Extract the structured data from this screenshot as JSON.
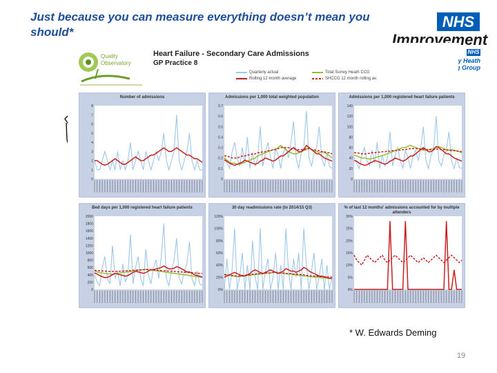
{
  "slide": {
    "title": "Just because you can measure everything doesn’t mean you should*",
    "footnote": "* W. Edwards Deming",
    "page_number": "19"
  },
  "branding": {
    "nhs_mark": "NHS",
    "org_name": "Improvement",
    "ccg_mark": "NHS",
    "ccg_line1": "Surrey Heath",
    "ccg_line2": "Clinical Commissioning Group"
  },
  "report": {
    "title": "Heart Failure - Secondary Care Admissions",
    "subtitle": "GP Practice 8",
    "qo_logo_text_1": "Quality",
    "qo_logo_text_2": "Observatory",
    "legend": [
      {
        "label": "Quarterly actual",
        "color": "#9ec6e8"
      },
      {
        "label": "Total Surrey Heath CCG",
        "color": "#9abb2e"
      },
      {
        "label": "Rolling 12 month average",
        "color": "#c81e1e"
      },
      {
        "label": "SHCCG 12 month rolling av.",
        "color": "#c81e1e"
      }
    ]
  },
  "colors": {
    "quarterly": "#9ec6e8",
    "ccg": "#9abb2e",
    "rolling": "#c81e1e",
    "panel_bg": "#c7d1e5",
    "plot_bg": "#ffffff",
    "brand_blue": "#005eb8",
    "title_blue": "#1f4e9c"
  },
  "chart_data": [
    {
      "type": "line",
      "title": "Number of admissions",
      "ylim": [
        0,
        8
      ],
      "yticks": [
        "0",
        "1",
        "2",
        "3",
        "4",
        "5",
        "6",
        "7",
        "8"
      ],
      "series": [
        {
          "name": "Quarterly actual",
          "values": [
            2,
            1,
            1,
            2,
            3,
            2,
            1,
            2,
            1,
            3,
            1,
            2,
            1,
            2,
            4,
            1,
            2,
            3,
            2,
            1,
            3,
            2,
            1,
            2,
            3,
            2,
            3,
            5,
            2,
            1,
            2,
            3,
            7,
            2,
            1,
            2,
            3,
            5,
            2,
            1,
            2,
            1,
            1
          ]
        },
        {
          "name": "Rolling 12 month average",
          "values": [
            2,
            2,
            1.8,
            1.6,
            1.5,
            1.6,
            1.8,
            2,
            2.2,
            2,
            1.8,
            1.6,
            1.6,
            1.8,
            2,
            2.2,
            2.4,
            2.2,
            2,
            2,
            2.2,
            2.4,
            2.6,
            2.6,
            2.8,
            3,
            3.2,
            3.4,
            3.2,
            3,
            3,
            3.2,
            3.4,
            3.2,
            3,
            2.8,
            2.6,
            2.6,
            2.4,
            2.2,
            2.2,
            2,
            1.8
          ]
        }
      ]
    },
    {
      "type": "line",
      "title": "Admissions per 1,000 total weighted population",
      "ylim": [
        0,
        0.7
      ],
      "yticks": [
        "0",
        "0.1",
        "0.2",
        "0.3",
        "0.4",
        "0.5",
        "0.6",
        "0.7"
      ],
      "series": [
        {
          "name": "Quarterly actual",
          "values": [
            0.2,
            0.15,
            0.1,
            0.25,
            0.35,
            0.2,
            0.12,
            0.3,
            0.15,
            0.4,
            0.1,
            0.25,
            0.12,
            0.2,
            0.5,
            0.12,
            0.25,
            0.35,
            0.2,
            0.1,
            0.3,
            0.22,
            0.1,
            0.25,
            0.3,
            0.2,
            0.35,
            0.55,
            0.2,
            0.1,
            0.25,
            0.3,
            0.65,
            0.2,
            0.12,
            0.25,
            0.3,
            0.5,
            0.2,
            0.12,
            0.25,
            0.12,
            0.1
          ]
        },
        {
          "name": "Total Surrey Heath CCG",
          "values": [
            0.2,
            0.18,
            0.16,
            0.15,
            0.15,
            0.14,
            0.14,
            0.15,
            0.16,
            0.17,
            0.18,
            0.19,
            0.2,
            0.22,
            0.23,
            0.24,
            0.25,
            0.26,
            0.27,
            0.28,
            0.28,
            0.3,
            0.32,
            0.3,
            0.28,
            0.26,
            0.25,
            0.24,
            0.24,
            0.25,
            0.26,
            0.27,
            0.28,
            0.3,
            0.28,
            0.27,
            0.26,
            0.25,
            0.26,
            0.25,
            0.24,
            0.22,
            0.2
          ]
        },
        {
          "name": "Rolling 12 month average",
          "values": [
            0.18,
            0.17,
            0.15,
            0.14,
            0.13,
            0.14,
            0.15,
            0.16,
            0.18,
            0.17,
            0.16,
            0.15,
            0.14,
            0.15,
            0.17,
            0.18,
            0.2,
            0.19,
            0.18,
            0.17,
            0.18,
            0.2,
            0.22,
            0.22,
            0.24,
            0.26,
            0.28,
            0.3,
            0.28,
            0.26,
            0.26,
            0.28,
            0.32,
            0.3,
            0.28,
            0.26,
            0.24,
            0.24,
            0.22,
            0.2,
            0.19,
            0.18,
            0.17
          ]
        },
        {
          "name": "SHCCG 12 month rolling av.",
          "values": [
            0.22,
            0.22,
            0.21,
            0.2,
            0.2,
            0.2,
            0.21,
            0.22,
            0.22,
            0.23,
            0.23,
            0.24,
            0.24,
            0.25,
            0.25,
            0.26,
            0.26,
            0.27,
            0.27,
            0.28,
            0.28,
            0.29,
            0.3,
            0.3,
            0.3,
            0.3,
            0.29,
            0.29,
            0.28,
            0.28,
            0.28,
            0.28,
            0.29,
            0.29,
            0.28,
            0.28,
            0.27,
            0.27,
            0.26,
            0.26,
            0.25,
            0.25,
            0.24
          ]
        }
      ]
    },
    {
      "type": "line",
      "title": "Admissions per 1,000 registered heart failure patients",
      "ylim": [
        0,
        140
      ],
      "yticks": [
        "0",
        "20",
        "40",
        "60",
        "80",
        "100",
        "120",
        "140"
      ],
      "series": [
        {
          "name": "Quarterly actual",
          "values": [
            40,
            30,
            20,
            45,
            60,
            35,
            25,
            55,
            30,
            70,
            20,
            45,
            25,
            40,
            90,
            25,
            45,
            60,
            35,
            20,
            55,
            40,
            20,
            45,
            55,
            35,
            60,
            100,
            35,
            20,
            45,
            55,
            120,
            35,
            25,
            45,
            55,
            90,
            35,
            20,
            40,
            22,
            20
          ]
        },
        {
          "name": "Total Surrey Heath CCG",
          "values": [
            45,
            44,
            42,
            40,
            40,
            39,
            38,
            39,
            40,
            42,
            43,
            45,
            46,
            48,
            50,
            52,
            54,
            56,
            58,
            60,
            60,
            62,
            64,
            62,
            60,
            58,
            56,
            55,
            55,
            56,
            57,
            58,
            60,
            62,
            60,
            58,
            56,
            55,
            56,
            55,
            54,
            52,
            50
          ]
        },
        {
          "name": "Rolling 12 month average",
          "values": [
            35,
            34,
            30,
            28,
            26,
            27,
            30,
            32,
            35,
            34,
            32,
            30,
            28,
            30,
            34,
            36,
            40,
            38,
            36,
            34,
            36,
            40,
            44,
            44,
            48,
            52,
            56,
            60,
            56,
            52,
            52,
            56,
            62,
            60,
            56,
            52,
            48,
            48,
            44,
            40,
            38,
            36,
            34
          ]
        },
        {
          "name": "SHCCG 12 month rolling av.",
          "values": [
            50,
            50,
            49,
            48,
            48,
            48,
            49,
            50,
            50,
            51,
            51,
            52,
            52,
            53,
            53,
            54,
            54,
            55,
            55,
            56,
            56,
            57,
            58,
            58,
            58,
            58,
            57,
            57,
            56,
            56,
            56,
            56,
            57,
            57,
            56,
            56,
            55,
            55,
            54,
            54,
            53,
            53,
            52
          ]
        }
      ]
    },
    {
      "type": "line",
      "title": "Bed days per 1,000 registered heart failure patients",
      "ylim": [
        0,
        2000
      ],
      "yticks": [
        "0",
        "200",
        "400",
        "600",
        "800",
        "1000",
        "1200",
        "1400",
        "1600",
        "1800",
        "2000"
      ],
      "series": [
        {
          "name": "Quarterly actual",
          "values": [
            400,
            200,
            100,
            600,
            900,
            300,
            150,
            1200,
            300,
            500,
            100,
            700,
            200,
            400,
            1500,
            150,
            600,
            900,
            300,
            100,
            1100,
            400,
            150,
            600,
            800,
            300,
            900,
            1800,
            300,
            100,
            500,
            800,
            1400,
            300,
            150,
            500,
            700,
            1300,
            300,
            100,
            500,
            150,
            100
          ]
        },
        {
          "name": "Total Surrey Heath CCG",
          "values": [
            500,
            480,
            460,
            450,
            440,
            430,
            420,
            420,
            430,
            440,
            450,
            460,
            470,
            480,
            490,
            500,
            510,
            520,
            530,
            540,
            550,
            540,
            530,
            520,
            510,
            500,
            490,
            480,
            470,
            460,
            450,
            440,
            430,
            420,
            410,
            400,
            390,
            380,
            370,
            360,
            350,
            340,
            330
          ]
        },
        {
          "name": "Rolling 12 month average",
          "values": [
            450,
            420,
            380,
            350,
            320,
            330,
            360,
            400,
            440,
            420,
            400,
            380,
            360,
            380,
            420,
            460,
            500,
            480,
            460,
            440,
            460,
            500,
            540,
            540,
            560,
            580,
            600,
            640,
            600,
            560,
            560,
            580,
            620,
            600,
            560,
            520,
            480,
            480,
            440,
            400,
            380,
            360,
            340
          ]
        },
        {
          "name": "SHCCG 12 month rolling av.",
          "values": [
            520,
            515,
            510,
            505,
            500,
            495,
            490,
            490,
            492,
            495,
            498,
            500,
            505,
            510,
            515,
            520,
            525,
            530,
            535,
            540,
            545,
            540,
            535,
            530,
            525,
            520,
            515,
            510,
            505,
            500,
            495,
            490,
            485,
            480,
            475,
            470,
            465,
            460,
            455,
            450,
            445,
            440,
            435
          ]
        }
      ]
    },
    {
      "type": "line",
      "title": "30 day readmissions rate (to 2014/15 Q3)",
      "ylim": [
        0,
        120
      ],
      "yticks": [
        "0%",
        "20%",
        "40%",
        "60%",
        "80%",
        "100%",
        "120%"
      ],
      "series": [
        {
          "name": "Quarterly actual",
          "values": [
            0,
            50,
            0,
            30,
            100,
            0,
            20,
            60,
            0,
            40,
            0,
            80,
            20,
            0,
            100,
            0,
            30,
            50,
            0,
            20,
            60,
            0,
            40,
            0,
            100,
            30,
            0,
            50,
            20,
            60,
            0,
            100,
            40,
            0,
            30,
            60,
            0,
            20,
            50,
            0,
            40,
            0,
            20
          ]
        },
        {
          "name": "Total Surrey Heath CCG",
          "values": [
            25,
            24,
            23,
            22,
            22,
            21,
            21,
            22,
            22,
            23,
            23,
            24,
            24,
            25,
            25,
            26,
            26,
            27,
            27,
            28,
            28,
            27,
            27,
            26,
            26,
            25,
            25,
            24,
            24,
            23,
            23,
            22,
            22,
            21,
            21,
            20,
            20,
            20,
            19,
            19,
            18,
            18,
            18
          ]
        },
        {
          "name": "Rolling 12 month average",
          "values": [
            20,
            22,
            24,
            26,
            28,
            26,
            24,
            22,
            22,
            24,
            26,
            30,
            32,
            30,
            28,
            26,
            28,
            30,
            32,
            30,
            28,
            26,
            28,
            30,
            34,
            32,
            30,
            30,
            28,
            30,
            32,
            36,
            34,
            30,
            28,
            26,
            24,
            22,
            22,
            20,
            20,
            18,
            18
          ]
        },
        {
          "name": "SHCCG 12 month rolling av.",
          "values": [
            24,
            24,
            23,
            23,
            22,
            22,
            22,
            23,
            23,
            24,
            24,
            25,
            25,
            26,
            26,
            26,
            27,
            27,
            27,
            28,
            28,
            28,
            27,
            27,
            26,
            26,
            26,
            25,
            25,
            25,
            24,
            24,
            23,
            23,
            22,
            22,
            22,
            21,
            21,
            21,
            20,
            20,
            20
          ]
        }
      ]
    },
    {
      "type": "line",
      "title": "% of last 12 months' admissions accounted for by multiple attenders",
      "ylim": [
        0,
        30
      ],
      "yticks": [
        "0%",
        "5%",
        "10%",
        "15%",
        "20%",
        "25%",
        "30%"
      ],
      "series": [
        {
          "name": "Rolling 12 month average",
          "values": [
            0,
            0,
            0,
            0,
            0,
            0,
            0,
            0,
            0,
            0,
            0,
            0,
            0,
            0,
            28,
            0,
            0,
            0,
            0,
            0,
            28,
            0,
            0,
            0,
            0,
            0,
            0,
            0,
            0,
            0,
            0,
            0,
            0,
            0,
            0,
            0,
            28,
            0,
            0,
            8,
            0,
            0,
            0
          ]
        },
        {
          "name": "SHCCG 12 month rolling av.",
          "values": [
            14,
            12,
            11,
            10,
            12,
            14,
            13,
            12,
            11,
            12,
            13,
            14,
            12,
            11,
            12,
            13,
            14,
            13,
            12,
            11,
            12,
            13,
            14,
            13,
            12,
            11,
            12,
            13,
            12,
            11,
            12,
            13,
            14,
            13,
            12,
            11,
            12,
            13,
            14,
            13,
            12,
            11,
            12
          ]
        }
      ]
    }
  ]
}
